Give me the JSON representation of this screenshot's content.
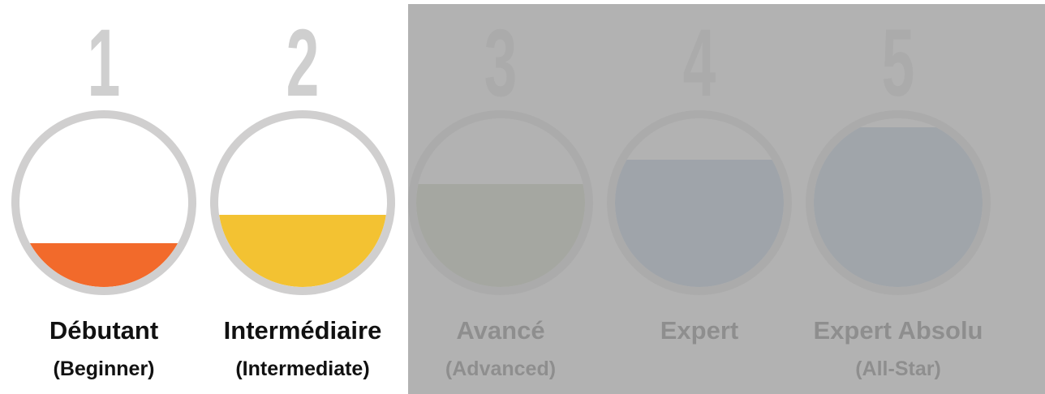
{
  "levels": [
    {
      "number": "1",
      "name": "Débutant",
      "translation": "(Beginner)"
    },
    {
      "number": "2",
      "name": "Intermédiaire",
      "translation": "(Intermediate)"
    },
    {
      "number": "3",
      "name": "Avancé",
      "translation": "(Advanced)"
    },
    {
      "number": "4",
      "name": "Expert"
    },
    {
      "number": "5",
      "name": "Expert Absolu",
      "translation": "(All-Star)"
    }
  ]
}
